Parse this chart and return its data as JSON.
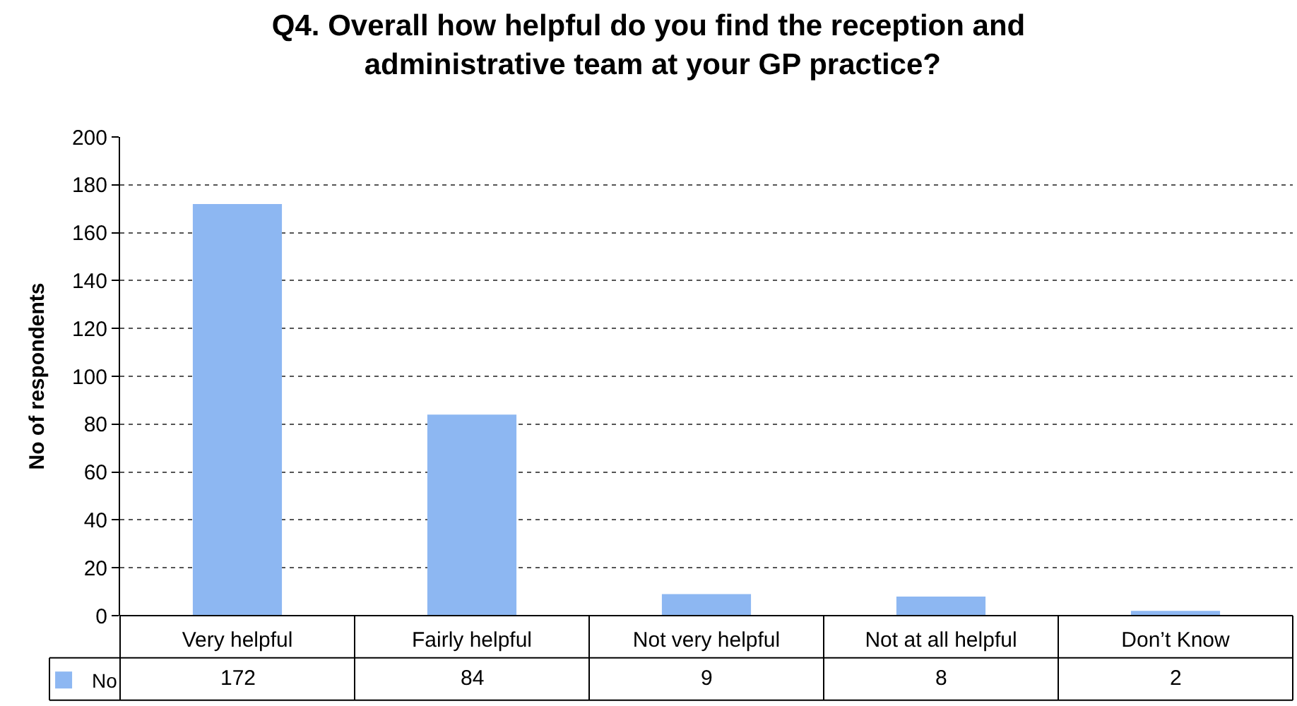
{
  "chart_data": {
    "type": "bar",
    "title": "Q4. Overall how helpful do you find the reception and administrative team at your GP practice?",
    "ylabel": "No of respondents",
    "categories": [
      "Very helpful",
      "Fairly helpful",
      "Not very helpful",
      "Not at all helpful",
      "Don’t Know"
    ],
    "series": [
      {
        "name": "No",
        "color": "#8db7f2",
        "values": [
          172,
          84,
          9,
          8,
          2
        ]
      }
    ],
    "ylim": [
      0,
      200
    ],
    "yticks": [
      0,
      20,
      40,
      60,
      80,
      100,
      120,
      140,
      160,
      180,
      200
    ],
    "grid": "y",
    "legend": "bottom left",
    "data_labels": true
  }
}
